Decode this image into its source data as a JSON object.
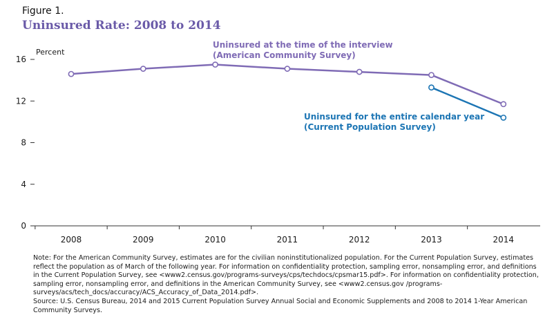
{
  "figure_label": "Figure 1.",
  "figure_title": "Uninsured Rate: 2008 to 2014",
  "chart_data": {
    "type": "line",
    "ylabel": "Percent",
    "ylim": [
      0,
      16
    ],
    "yticks": [
      0,
      4,
      8,
      12,
      16
    ],
    "x": [
      "2008",
      "2009",
      "2010",
      "2011",
      "2012",
      "2013",
      "2014"
    ],
    "grid": false,
    "colors": {
      "acs": "#7f6bb5",
      "cps": "#1c75b4"
    },
    "series": [
      {
        "key": "acs",
        "name_line1": "Uninsured at the time of the interview",
        "name_line2": "(American Community Survey)",
        "x": [
          "2008",
          "2009",
          "2010",
          "2011",
          "2012",
          "2013",
          "2014"
        ],
        "values": [
          14.6,
          15.1,
          15.5,
          15.1,
          14.8,
          14.5,
          11.7
        ]
      },
      {
        "key": "cps",
        "name_line1": "Uninsured for the entire calendar year",
        "name_line2": "(Current Population Survey)",
        "x": [
          "2013",
          "2014"
        ],
        "values": [
          13.3,
          10.4
        ]
      }
    ]
  },
  "note": {
    "text": "Note: For the American Community Survey, estimates are for the civilian noninstitutionalized population. For the Current Population Survey, estimates reflect the population as of March of the following year. For information on confidentiality protection, sampling error, nonsampling error, and definitions in the Current Population Survey, see <www2.census.gov/programs-surveys/cps/techdocs/cpsmar15.pdf>. For information on confidentiality protection, sampling error, nonsampling error, and definitions in the American Community Survey, see <www2.census.gov /programs-surveys/acs/tech_docs/accuracy/ACS_Accuracy_of_Data_2014.pdf>.",
    "source": "Source: U.S. Census Bureau, 2014 and 2015 Current Population Survey Annual Social and Economic Supplements and 2008 to 2014 1-Year American Community Surveys."
  }
}
